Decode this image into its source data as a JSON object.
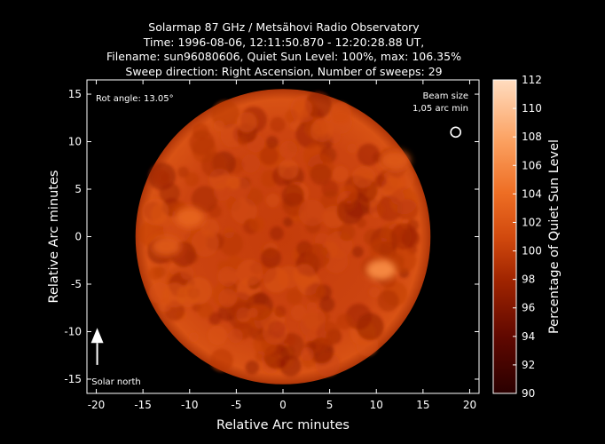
{
  "chart_data": {
    "type": "heatmap",
    "title_lines": [
      "Solarmap 87 GHz / Metsähovi Radio Observatory",
      "Time: 1996-08-06, 12:11:50.870 - 12:20:28.88 UT,",
      "Filename: sun96080606, Quiet Sun Level: 100%, max: 106.35%",
      "Sweep direction: Right Ascension, Number of sweeps: 29"
    ],
    "xlabel": "Relative Arc minutes",
    "ylabel": "Relative Arc minutes",
    "xlim": [
      -21,
      21
    ],
    "ylim": [
      -16.5,
      16.5
    ],
    "xticks": [
      -20,
      -15,
      -10,
      -5,
      0,
      5,
      10,
      15,
      20
    ],
    "yticks": [
      -15,
      -10,
      -5,
      0,
      5,
      10,
      15
    ],
    "colorbar": {
      "label": "Percentage of Quiet Sun Level",
      "range": [
        90,
        112
      ],
      "ticks": [
        90,
        92,
        94,
        96,
        98,
        100,
        102,
        104,
        106,
        108,
        110,
        112
      ]
    },
    "disk": {
      "center": [
        0,
        0
      ],
      "radius_arcmin": 15.8,
      "typical_level": 100,
      "max_level": 106.35
    },
    "bright_regions": [
      {
        "center": [
          10.5,
          -3.5
        ],
        "level": 106
      },
      {
        "center": [
          -10,
          2
        ],
        "level": 103
      },
      {
        "center": [
          -12.5,
          -1
        ],
        "level": 102
      },
      {
        "center": [
          12,
          8
        ],
        "level": 102
      }
    ],
    "annotations": {
      "rot_angle": "Rot angle: 13.05°",
      "beam_size_line1": "Beam size",
      "beam_size_line2": "1,05 arc min",
      "beam_center": [
        18.5,
        11
      ],
      "beam_diameter_arcmin": 1.05,
      "solar_north": "Solar north"
    }
  }
}
